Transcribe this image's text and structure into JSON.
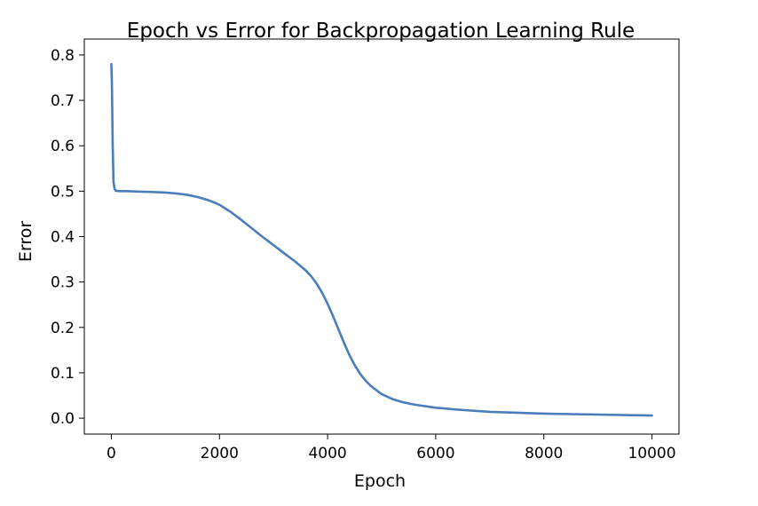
{
  "chart_data": {
    "type": "line",
    "title": "Epoch vs Error for Backpropagation Learning Rule",
    "xlabel": "Epoch",
    "ylabel": "Error",
    "xlim": [
      -500,
      10500
    ],
    "ylim": [
      -0.035,
      0.835
    ],
    "xticks": [
      0,
      2000,
      4000,
      6000,
      8000,
      10000
    ],
    "xtick_labels": [
      "0",
      "2000",
      "4000",
      "6000",
      "8000",
      "10000"
    ],
    "yticks": [
      0.0,
      0.1,
      0.2,
      0.3,
      0.4,
      0.5,
      0.6,
      0.7,
      0.8
    ],
    "ytick_labels": [
      "0.0",
      "0.1",
      "0.2",
      "0.3",
      "0.4",
      "0.5",
      "0.6",
      "0.7",
      "0.8"
    ],
    "grid": false,
    "color": "#4a7ebb",
    "series": [
      {
        "x": [
          0,
          10,
          25,
          40,
          60,
          80,
          150,
          300,
          500,
          800,
          1000,
          1200,
          1400,
          1600,
          1800,
          2000,
          2200,
          2400,
          2600,
          2800,
          3000,
          3200,
          3400,
          3600,
          3700,
          3800,
          3900,
          4000,
          4100,
          4200,
          4300,
          4400,
          4500,
          4600,
          4700,
          4800,
          5000,
          5200,
          5400,
          5600,
          6000,
          6500,
          7000,
          7500,
          8000,
          8500,
          9000,
          9500,
          10000
        ],
        "y": [
          0.78,
          0.74,
          0.6,
          0.52,
          0.505,
          0.501,
          0.5,
          0.5,
          0.499,
          0.498,
          0.497,
          0.495,
          0.492,
          0.487,
          0.48,
          0.47,
          0.455,
          0.437,
          0.418,
          0.399,
          0.381,
          0.363,
          0.345,
          0.325,
          0.312,
          0.296,
          0.276,
          0.252,
          0.225,
          0.196,
          0.167,
          0.14,
          0.117,
          0.098,
          0.083,
          0.071,
          0.053,
          0.042,
          0.035,
          0.03,
          0.023,
          0.018,
          0.014,
          0.012,
          0.01,
          0.009,
          0.008,
          0.007,
          0.006
        ]
      }
    ]
  }
}
